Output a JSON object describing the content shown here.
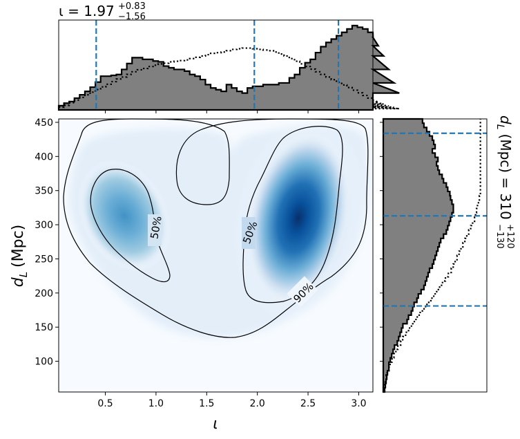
{
  "chart_data": [
    {
      "panel": "joint",
      "type": "heatmap",
      "xlabel": "ι",
      "ylabel_main": "d",
      "ylabel_sub": "L",
      "ylabel_unit": "(Mpc)",
      "xlim": [
        0.04,
        3.14
      ],
      "ylim": [
        55,
        455
      ],
      "xticks": [
        "0.5",
        "1.0",
        "1.5",
        "2.0",
        "2.5",
        "3.0"
      ],
      "xtick_values": [
        0.5,
        1.0,
        1.5,
        2.0,
        2.5,
        3.0
      ],
      "yticks": [
        "100",
        "150",
        "200",
        "250",
        "300",
        "350",
        "400",
        "450"
      ],
      "ytick_values": [
        100,
        150,
        200,
        250,
        300,
        350,
        400,
        450
      ],
      "colormap": "Blues",
      "density_peaks": [
        {
          "x": 2.45,
          "y": 305,
          "weight": 1.0
        },
        {
          "x": 0.65,
          "y": 305,
          "weight": 0.55
        }
      ],
      "contours": [
        {
          "label": "50%",
          "level": 0.5,
          "label_positions": [
            {
              "x": 0.98,
              "y": 292
            },
            {
              "x": 1.92,
              "y": 292
            }
          ]
        },
        {
          "label": "90%",
          "level": 0.9,
          "label_positions": [
            {
              "x": 2.45,
              "y": 196
            }
          ]
        }
      ]
    },
    {
      "panel": "top_marginal",
      "type": "histogram",
      "title_base": "ι = 1.97",
      "title_sup": "+0.83",
      "title_sub": "−1.56",
      "median": 1.97,
      "lower": 0.41,
      "upper": 2.8,
      "vlines": [
        0.41,
        1.97,
        2.8
      ],
      "line_color": "#1f77b4",
      "fill_color": "#808080",
      "bin_start": 0.04,
      "bin_width": 0.0517,
      "posterior_density": [
        0.05,
        0.08,
        0.1,
        0.14,
        0.18,
        0.22,
        0.27,
        0.33,
        0.4,
        0.4,
        0.41,
        0.42,
        0.48,
        0.55,
        0.62,
        0.62,
        0.6,
        0.6,
        0.58,
        0.57,
        0.52,
        0.5,
        0.48,
        0.48,
        0.46,
        0.42,
        0.4,
        0.36,
        0.3,
        0.26,
        0.24,
        0.22,
        0.3,
        0.26,
        0.22,
        0.2,
        0.26,
        0.28,
        0.28,
        0.3,
        0.3,
        0.3,
        0.32,
        0.32,
        0.38,
        0.42,
        0.5,
        0.56,
        0.6,
        0.68,
        0.75,
        0.8,
        0.84,
        0.88,
        0.92,
        0.96,
        1.0,
        0.98,
        0.96,
        0.92,
        0.86,
        0.76,
        0.64,
        0.48,
        0.32,
        0.2
      ],
      "prior_density": [
        0.04,
        0.07,
        0.11,
        0.15,
        0.19,
        0.23,
        0.27,
        0.31,
        0.35,
        0.39,
        0.43,
        0.47,
        0.5,
        0.54,
        0.58,
        0.61,
        0.63,
        0.66,
        0.68,
        0.7,
        0.71,
        0.73,
        0.74,
        0.75,
        0.76,
        0.78,
        0.8,
        0.82,
        0.84,
        0.86,
        0.87,
        0.88,
        0.9,
        0.92,
        0.93,
        0.94,
        0.94,
        0.93,
        0.92,
        0.91,
        0.9,
        0.88,
        0.85,
        0.82,
        0.78,
        0.74,
        0.7,
        0.66,
        0.62,
        0.58,
        0.54,
        0.5,
        0.46,
        0.42,
        0.38,
        0.34,
        0.3,
        0.26,
        0.22,
        0.18,
        0.15,
        0.12,
        0.09,
        0.06,
        0.04,
        0.02
      ]
    },
    {
      "panel": "right_marginal",
      "type": "histogram",
      "label_main": "d",
      "label_sub": "L",
      "label_rest": "(Mpc) = 310",
      "label_sup": "+120",
      "label_sub2": "−130",
      "median": 313,
      "lower": 181,
      "upper": 434,
      "hlines": [
        181,
        313,
        434
      ],
      "line_color": "#1f77b4",
      "fill_color": "#808080",
      "bin_start": 55,
      "bin_width": 6.25,
      "posterior_density": [
        0.02,
        0.03,
        0.04,
        0.05,
        0.06,
        0.08,
        0.08,
        0.1,
        0.12,
        0.14,
        0.16,
        0.2,
        0.22,
        0.24,
        0.26,
        0.28,
        0.34,
        0.36,
        0.4,
        0.42,
        0.44,
        0.48,
        0.5,
        0.54,
        0.58,
        0.6,
        0.62,
        0.64,
        0.66,
        0.7,
        0.72,
        0.74,
        0.76,
        0.78,
        0.8,
        0.82,
        0.86,
        0.9,
        0.92,
        0.94,
        0.96,
        0.98,
        1.0,
        1.0,
        0.98,
        0.96,
        0.95,
        0.92,
        0.9,
        0.86,
        0.84,
        0.8,
        0.78,
        0.76,
        0.78,
        0.74,
        0.7,
        0.74,
        0.72,
        0.7,
        0.66,
        0.62,
        0.58,
        0.56,
        0.52
      ],
      "prior_density": [
        0.0,
        0.01,
        0.02,
        0.03,
        0.04,
        0.06,
        0.07,
        0.09,
        0.11,
        0.13,
        0.15,
        0.18,
        0.2,
        0.23,
        0.26,
        0.29,
        0.32,
        0.35,
        0.38,
        0.42,
        0.45,
        0.49,
        0.52,
        0.55,
        0.58,
        0.61,
        0.64,
        0.67,
        0.7,
        0.72,
        0.74,
        0.76,
        0.78,
        0.8,
        0.82,
        0.84,
        0.86,
        0.88,
        0.9,
        0.92,
        0.94,
        0.95,
        0.96,
        0.97,
        0.98,
        0.99,
        1.0,
        1.0,
        1.0,
        1.0,
        1.0,
        1.0,
        1.0,
        1.0,
        1.0,
        1.0,
        1.0,
        1.0,
        1.0,
        1.0,
        1.0,
        1.0,
        1.0,
        1.0,
        1.0
      ]
    }
  ]
}
